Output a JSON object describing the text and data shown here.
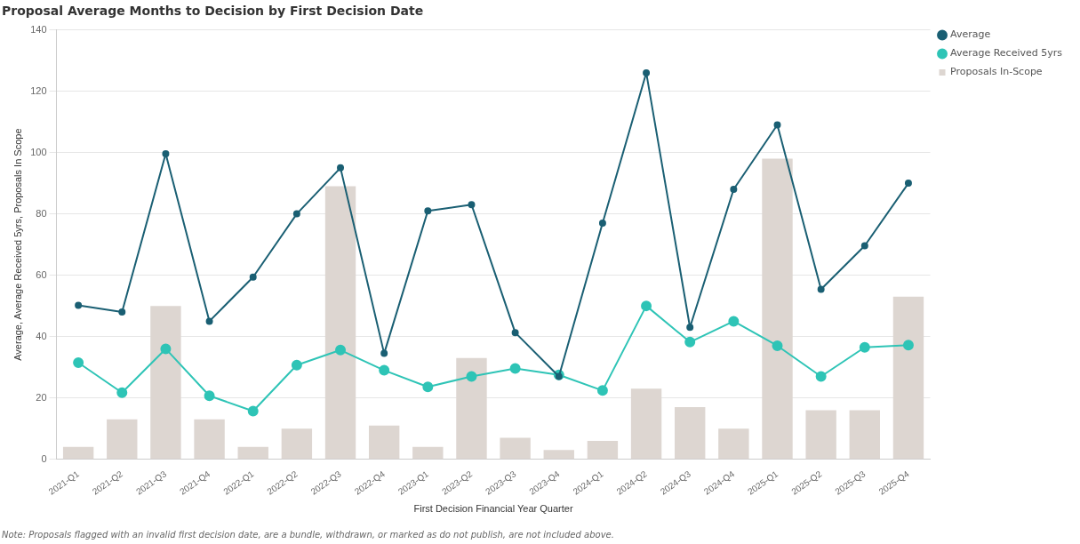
{
  "chart_data": {
    "type": "bar",
    "title": "Proposal Average Months to Decision by First Decision Date",
    "xlabel": "First Decision Financial Year Quarter",
    "ylabel": "Average, Average Received 5yrs, Proposals In Scope",
    "categories": [
      "2021-Q1",
      "2021-Q2",
      "2021-Q3",
      "2021-Q4",
      "2022-Q1",
      "2022-Q2",
      "2022-Q3",
      "2022-Q4",
      "2023-Q1",
      "2023-Q2",
      "2023-Q3",
      "2023-Q4",
      "2024-Q1",
      "2024-Q2",
      "2024-Q3",
      "2024-Q4",
      "2025-Q1",
      "2025-Q2",
      "2025-Q3",
      "2025-Q4"
    ],
    "series": [
      {
        "name": "Average",
        "type": "line",
        "color": "#1a5f73",
        "values": [
          50.2,
          48,
          99.6,
          45,
          59.4,
          80,
          95,
          34.5,
          81,
          83,
          41.3,
          27,
          77,
          126,
          43,
          88,
          109,
          55.4,
          69.6,
          90
        ]
      },
      {
        "name": "Average Received 5yrs",
        "type": "line",
        "color": "#2ec4b6",
        "values": [
          31.5,
          21.7,
          36,
          20.7,
          15.7,
          30.7,
          35.6,
          29,
          23.6,
          27,
          29.6,
          27.5,
          22.4,
          50,
          38.2,
          45,
          37,
          27,
          36.5,
          37.2
        ]
      },
      {
        "name": "Proposals In-Scope",
        "color": "#ddd6d1",
        "values": [
          4,
          13,
          50,
          13,
          4,
          10,
          89,
          11,
          4,
          33,
          7,
          3,
          6,
          23,
          17,
          10,
          98,
          16,
          16,
          53
        ]
      }
    ],
    "ylim": [
      0,
      140
    ],
    "yticks": [
      0,
      20,
      40,
      60,
      80,
      100,
      120,
      140
    ],
    "grid": "y",
    "legend": "top right",
    "marker": "circle",
    "line_style": "solid",
    "annotations": [
      "Note: Proposals flagged with an invalid first decision date, are a bundle, withdrawn, or marked as do not publish, are not included above."
    ]
  }
}
